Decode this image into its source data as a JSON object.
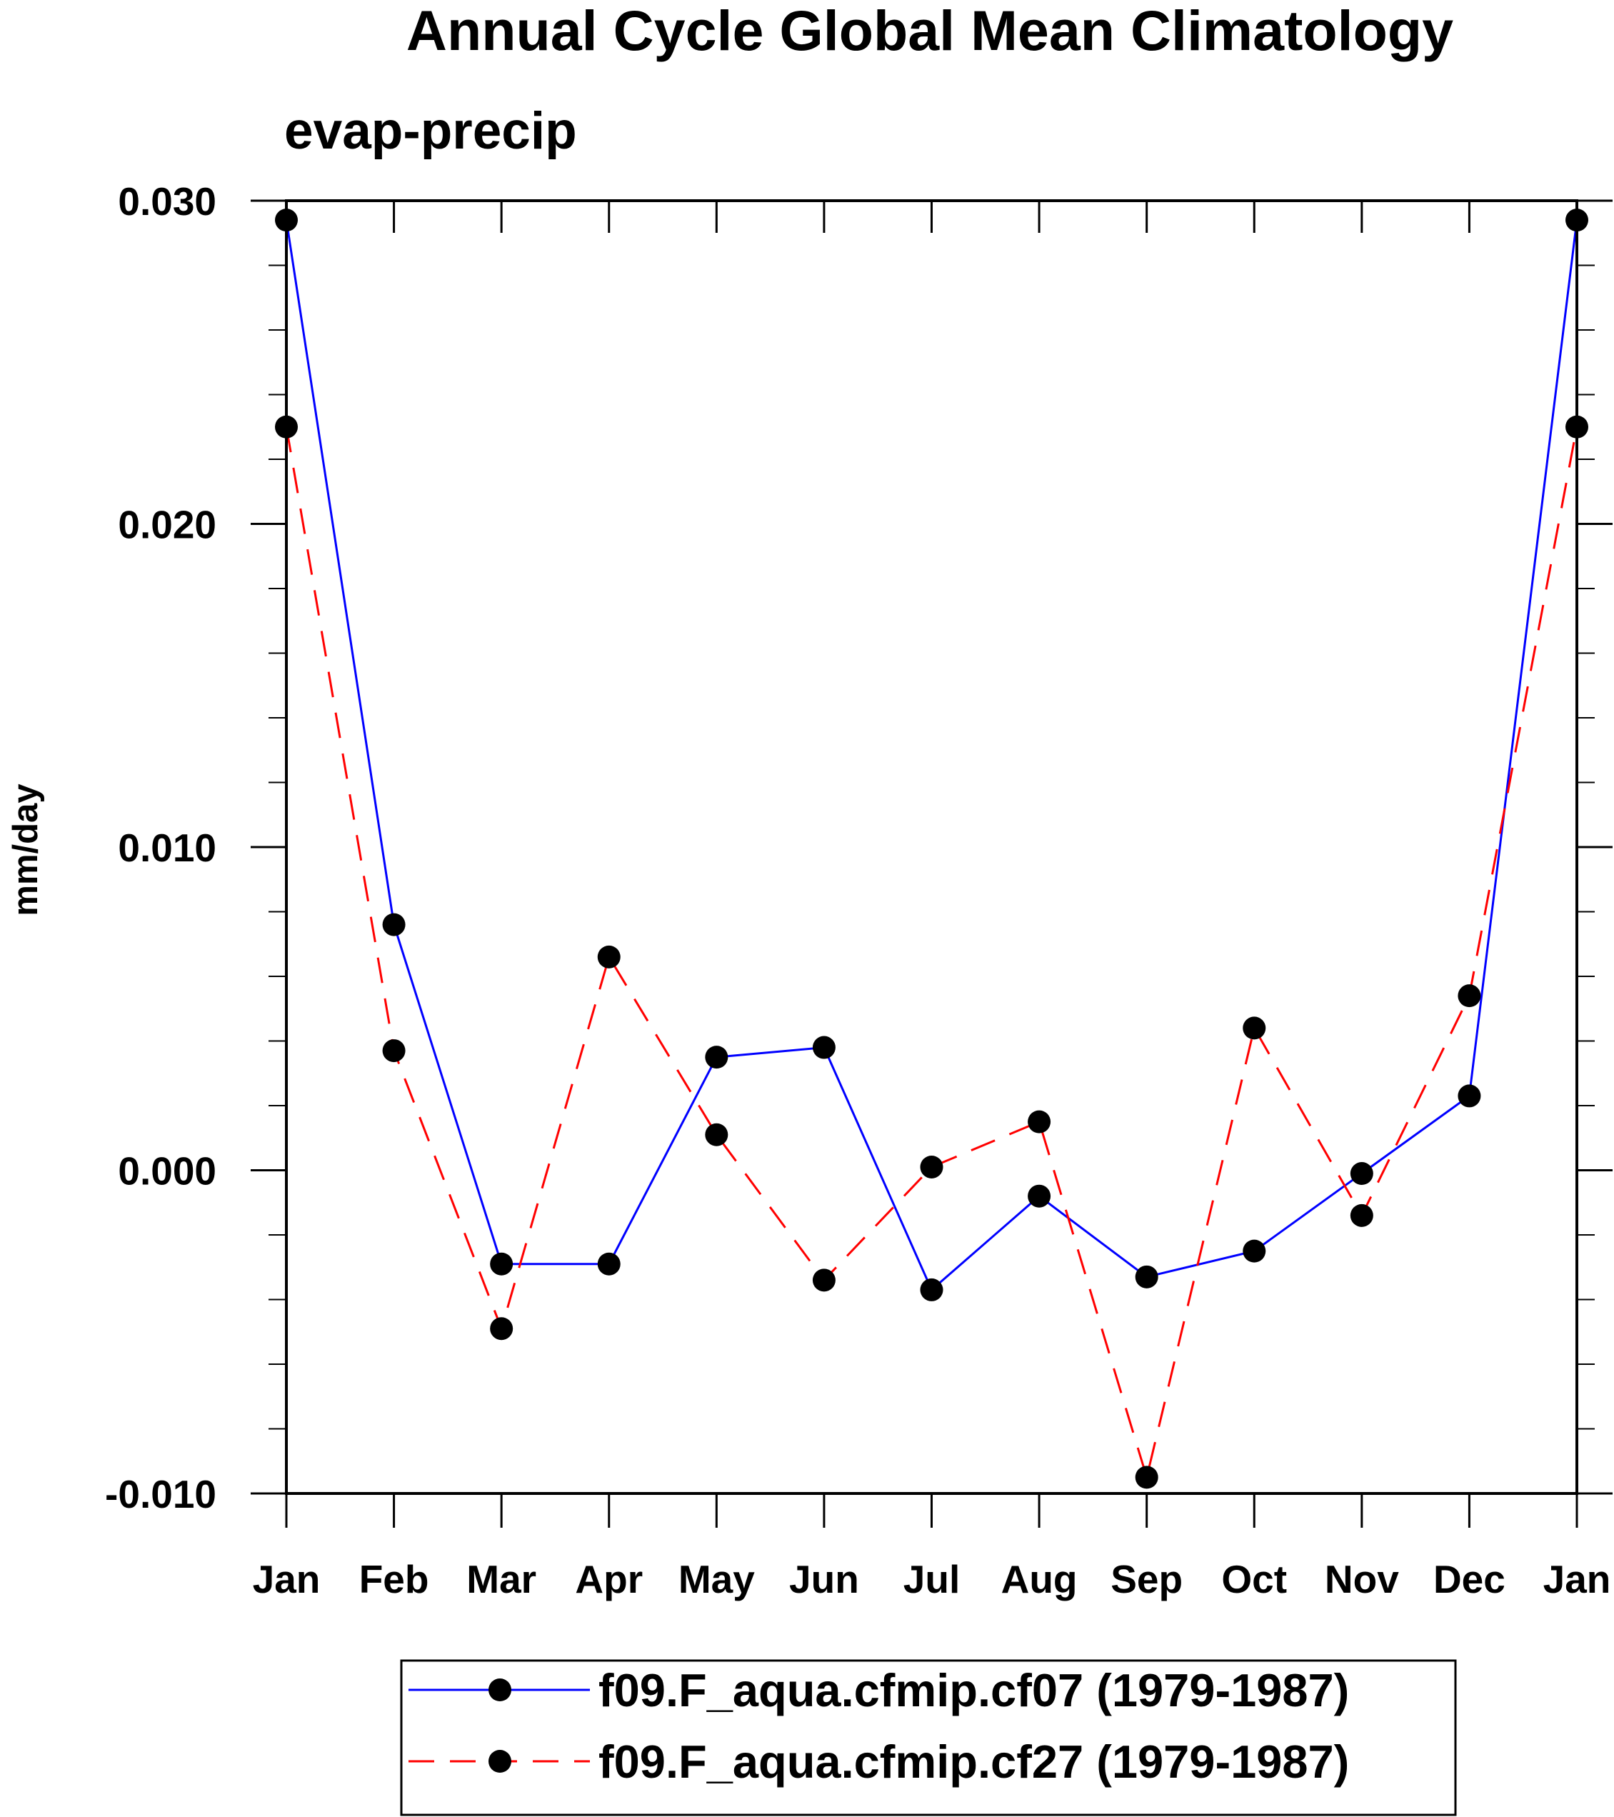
{
  "chart_data": {
    "type": "line",
    "title": "Annual Cycle Global Mean Climatology",
    "subtitle": "evap-precip",
    "xlabel": "",
    "ylabel": "mm/day",
    "categories": [
      "Jan",
      "Feb",
      "Mar",
      "Apr",
      "May",
      "Jun",
      "Jul",
      "Aug",
      "Sep",
      "Oct",
      "Nov",
      "Dec",
      "Jan"
    ],
    "ylim": [
      -0.01,
      0.03
    ],
    "yticks": [
      {
        "value": -0.01,
        "label": "-0.010"
      },
      {
        "value": 0.0,
        "label": "0.000"
      },
      {
        "value": 0.01,
        "label": "0.010"
      },
      {
        "value": 0.02,
        "label": "0.020"
      },
      {
        "value": 0.03,
        "label": "0.030"
      }
    ],
    "y_minor_step": 0.002,
    "legend_position": "bottom",
    "series": [
      {
        "name": "f09.F_aqua.cfmip.cf07 (1979-1987)",
        "color": "#0000ff",
        "dash": "solid",
        "marker": "circle",
        "values": [
          0.0294,
          0.0076,
          -0.0029,
          -0.0029,
          0.0035,
          0.0038,
          -0.0037,
          -0.0008,
          -0.0033,
          -0.0025,
          -0.0001,
          0.0023,
          0.0294
        ]
      },
      {
        "name": "f09.F_aqua.cfmip.cf27 (1979-1987)",
        "color": "#ff0000",
        "dash": "dashed",
        "marker": "circle",
        "values": [
          0.023,
          0.0037,
          -0.0049,
          0.0066,
          0.0011,
          -0.0034,
          0.0001,
          0.0015,
          -0.0095,
          0.0044,
          -0.0014,
          0.0054,
          0.023
        ]
      }
    ]
  }
}
